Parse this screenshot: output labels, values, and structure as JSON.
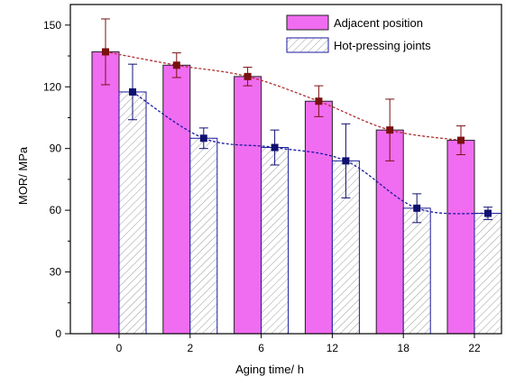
{
  "chart_data": {
    "type": "bar",
    "title": "",
    "xlabel": "Aging time/ h",
    "ylabel": "MOR/ MPa",
    "ylim": [
      0,
      160
    ],
    "yticks": [
      0,
      30,
      60,
      90,
      120,
      150
    ],
    "categories": [
      "0",
      "2",
      "6",
      "12",
      "18",
      "22"
    ],
    "legend_position": "top-right",
    "grid": false,
    "series": [
      {
        "name": "Adjacent position",
        "values": [
          137,
          130.5,
          125,
          113,
          99,
          94
        ],
        "errors": [
          16,
          6,
          4.5,
          7.5,
          15,
          7
        ],
        "fill": "#f06cf0",
        "pattern": "solid",
        "line_color": "#b03030",
        "marker_color": "#7a1010"
      },
      {
        "name": "Hot-pressing joints",
        "values": [
          117.5,
          95,
          90.5,
          84,
          61,
          58.5
        ],
        "errors": [
          13.5,
          5,
          8.5,
          18,
          7,
          3
        ],
        "fill": "#ffffff",
        "pattern": "hatch",
        "line_color": "#1a1aa0",
        "marker_color": "#101070"
      }
    ]
  }
}
